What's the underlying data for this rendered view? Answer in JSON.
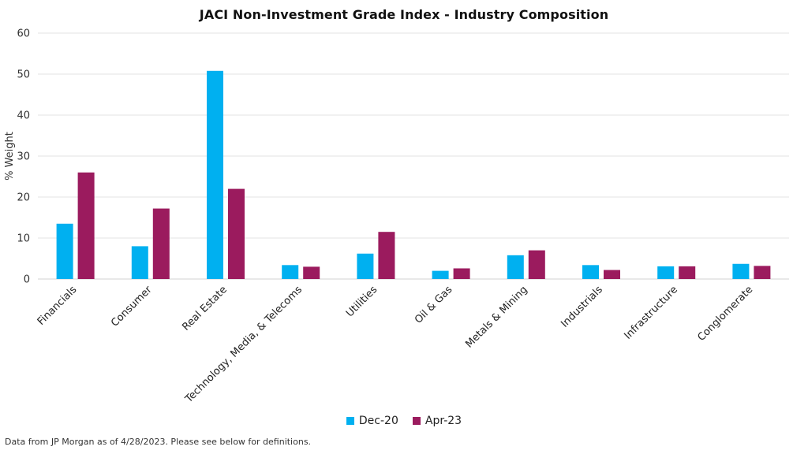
{
  "chart_data": {
    "type": "bar",
    "title": "JACI Non-Investment Grade Index - Industry Composition",
    "xlabel": "",
    "ylabel": "% Weight",
    "ylim": [
      0,
      60
    ],
    "yticks": [
      0,
      10,
      20,
      30,
      40,
      50,
      60
    ],
    "grid": true,
    "legend_position": "bottom",
    "categories": [
      "Financials",
      "Consumer",
      "Real Estate",
      "Technology, Media, & Telecoms",
      "Utilities",
      "Oil & Gas",
      "Metals & Mining",
      "Industrials",
      "Infrastructure",
      "Conglomerate"
    ],
    "series": [
      {
        "name": "Dec-20",
        "color": "#00b0f0",
        "values": [
          13.5,
          8.0,
          50.8,
          3.4,
          6.2,
          2.0,
          5.8,
          3.4,
          3.1,
          3.7
        ]
      },
      {
        "name": "Apr-23",
        "color": "#9b1b5e",
        "values": [
          26.0,
          17.2,
          22.0,
          3.0,
          11.5,
          2.6,
          7.0,
          2.2,
          3.1,
          3.2
        ]
      }
    ]
  },
  "footnote": "Data from JP Morgan as of 4/28/2023. Please see below for definitions."
}
